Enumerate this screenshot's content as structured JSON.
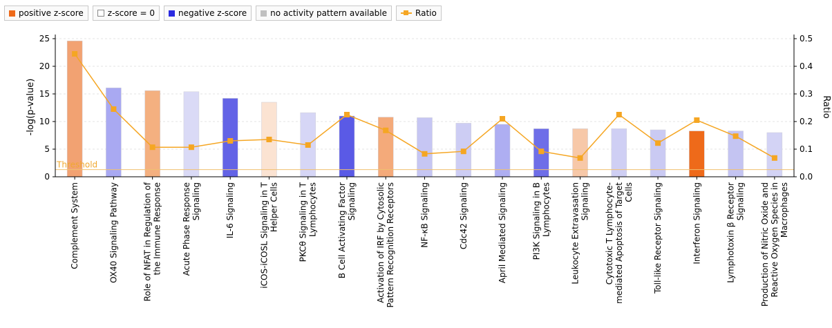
{
  "legend": {
    "items": [
      {
        "label": "positive z-score",
        "color": "#ee6a1a",
        "kind": "box"
      },
      {
        "label": "z-score = 0",
        "color": "#ffffff",
        "kind": "hollow"
      },
      {
        "label": "negative z-score",
        "color": "#2a2ae0",
        "kind": "box"
      },
      {
        "label": "no activity pattern available",
        "color": "#c0c0c0",
        "kind": "box"
      },
      {
        "label": "Ratio",
        "color": "#f5a623",
        "kind": "line"
      }
    ]
  },
  "chart_data": {
    "type": "bar",
    "title": "",
    "ylabel": "-log(p-value)",
    "y2label": "Ratio",
    "ylim": [
      0,
      25
    ],
    "y2lim": [
      0,
      0.5
    ],
    "yticks": [
      "0",
      "5",
      "10",
      "15",
      "20",
      "25"
    ],
    "y2ticks": [
      "0.0",
      "0.1",
      "0.2",
      "0.3",
      "0.4",
      "0.5"
    ],
    "threshold": {
      "label": "Threshold",
      "value": 1.3
    },
    "categories": [
      [
        "Complement System"
      ],
      [
        "OX40 Signaling Pathway"
      ],
      [
        "Role of NFAT in Regulation of",
        "the Immune Response"
      ],
      [
        "Acute Phase Response",
        "Signaling"
      ],
      [
        "IL-6 Signaling"
      ],
      [
        "iCOS-iCOSL Signaling in T",
        "Helper Cells"
      ],
      [
        "PKCθ Signaling in T",
        "Lymphocytes"
      ],
      [
        "B Cell Activating Factor",
        "Signaling"
      ],
      [
        "Activation of IRF by Cytosolic",
        "Pattern Recognition Receptors"
      ],
      [
        "NF-κB Signaling"
      ],
      [
        "Cdc42 Signaling"
      ],
      [
        "April Mediated Signaling"
      ],
      [
        "PI3K Signaling in B",
        "Lymphocytes"
      ],
      [
        "Leukocyte Extravasation",
        "Signaling"
      ],
      [
        "Cytotoxic T Lymphocyte-",
        "mediated Apoptosis of Target",
        "Cells"
      ],
      [
        "Toll-like Receptor Signaling"
      ],
      [
        "Interferon Signaling"
      ],
      [
        "Lymphotoxin β Receptor",
        "Signaling"
      ],
      [
        "Production of Nitric Oxide and",
        "Reactive Oxygen Species in",
        "Macrophages"
      ]
    ],
    "series": [
      {
        "name": "-log(p-value)",
        "values": [
          24.6,
          16.1,
          15.6,
          15.4,
          14.2,
          13.5,
          11.6,
          11.0,
          10.8,
          10.7,
          9.7,
          9.5,
          8.7,
          8.7,
          8.7,
          8.5,
          8.3,
          8.3,
          8.0
        ],
        "colors": [
          "#f2a272",
          "#a9a9f2",
          "#f4b080",
          "#dadaf6",
          "#6363e6",
          "#fbe3d2",
          "#d6d6f6",
          "#5a5ae6",
          "#f4aa7a",
          "#c6c6f3",
          "#cdcdf4",
          "#aeaef2",
          "#6e6ee8",
          "#f7c8a8",
          "#cfcff4",
          "#cacaf3",
          "#ee6a1a",
          "#c4c4f2",
          "#d3d3f5"
        ]
      },
      {
        "name": "Ratio",
        "values": [
          0.445,
          0.245,
          0.107,
          0.107,
          0.13,
          0.135,
          0.115,
          0.225,
          0.168,
          0.083,
          0.092,
          0.21,
          0.092,
          0.068,
          0.225,
          0.122,
          0.205,
          0.147,
          0.068
        ],
        "color": "#f5a623"
      }
    ],
    "grid": true,
    "legend_position": "top-left"
  }
}
